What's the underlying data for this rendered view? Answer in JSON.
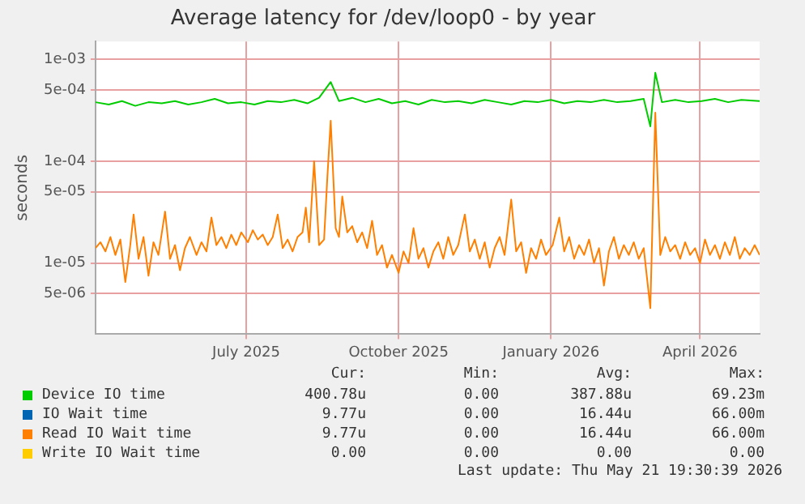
{
  "chart_data": {
    "type": "line",
    "title": "Average latency for /dev/loop0 - by year",
    "ylabel": "seconds",
    "log": "y",
    "grid": true,
    "legend": "bottom",
    "marker": "none",
    "line_style": "solid",
    "xlim": [
      "2025-04-01",
      "2026-05-07"
    ],
    "xticks": [
      {
        "value": "2025-07-01",
        "label": "July 2025"
      },
      {
        "value": "2025-10-01",
        "label": "October 2025"
      },
      {
        "value": "2026-01-01",
        "label": "January 2026"
      },
      {
        "value": "2026-04-01",
        "label": "April 2026"
      }
    ],
    "ylim": [
      2e-06,
      0.0015
    ],
    "yticks": [
      {
        "value": 5e-06,
        "label": "5e-06"
      },
      {
        "value": 1e-05,
        "label": "1e-05"
      },
      {
        "value": 5e-05,
        "label": "5e-05"
      },
      {
        "value": 0.0001,
        "label": "1e-04"
      },
      {
        "value": 0.0005,
        "label": "5e-04"
      },
      {
        "value": 0.001,
        "label": "1e-03"
      }
    ],
    "series": [
      {
        "name": "Device IO time",
        "color": "#00cc00",
        "x": [
          "2025-04-01",
          "2025-04-09",
          "2025-04-17",
          "2025-04-25",
          "2025-05-03",
          "2025-05-11",
          "2025-05-19",
          "2025-05-27",
          "2025-06-04",
          "2025-06-12",
          "2025-06-20",
          "2025-06-28",
          "2025-07-06",
          "2025-07-14",
          "2025-07-22",
          "2025-07-30",
          "2025-08-07",
          "2025-08-14",
          "2025-08-21",
          "2025-08-26",
          "2025-09-03",
          "2025-09-11",
          "2025-09-19",
          "2025-09-27",
          "2025-10-05",
          "2025-10-13",
          "2025-10-21",
          "2025-10-29",
          "2025-11-06",
          "2025-11-14",
          "2025-11-22",
          "2025-11-30",
          "2025-12-08",
          "2025-12-16",
          "2025-12-24",
          "2026-01-01",
          "2026-01-09",
          "2026-01-17",
          "2026-01-25",
          "2026-02-02",
          "2026-02-10",
          "2026-02-18",
          "2026-02-26",
          "2026-03-02",
          "2026-03-05",
          "2026-03-09",
          "2026-03-17",
          "2026-03-25",
          "2026-04-02",
          "2026-04-10",
          "2026-04-18",
          "2026-04-26",
          "2026-05-07"
        ],
        "values": [
          0.00038,
          0.00036,
          0.00039,
          0.00035,
          0.00038,
          0.00037,
          0.00039,
          0.00036,
          0.00038,
          0.00041,
          0.00037,
          0.00038,
          0.00036,
          0.00039,
          0.00038,
          0.0004,
          0.00037,
          0.00042,
          0.0006,
          0.00039,
          0.00042,
          0.00038,
          0.00041,
          0.00037,
          0.00039,
          0.00036,
          0.0004,
          0.00038,
          0.00039,
          0.00037,
          0.0004,
          0.00038,
          0.00036,
          0.00039,
          0.00038,
          0.0004,
          0.00037,
          0.00039,
          0.00038,
          0.0004,
          0.00038,
          0.00039,
          0.00041,
          0.00022,
          0.00074,
          0.00038,
          0.0004,
          0.00038,
          0.00039,
          0.00041,
          0.00038,
          0.0004,
          0.00039
        ]
      },
      {
        "name": "IO Wait time",
        "color": "#0066b3"
      },
      {
        "name": "Read IO Wait time",
        "color": "#ff8000",
        "x": [
          "2025-04-01",
          "2025-04-04",
          "2025-04-07",
          "2025-04-10",
          "2025-04-13",
          "2025-04-16",
          "2025-04-19",
          "2025-04-22",
          "2025-04-24",
          "2025-04-27",
          "2025-04-30",
          "2025-05-03",
          "2025-05-06",
          "2025-05-09",
          "2025-05-13",
          "2025-05-16",
          "2025-05-19",
          "2025-05-22",
          "2025-05-25",
          "2025-05-28",
          "2025-06-01",
          "2025-06-04",
          "2025-06-07",
          "2025-06-10",
          "2025-06-13",
          "2025-06-16",
          "2025-06-19",
          "2025-06-22",
          "2025-06-25",
          "2025-06-28",
          "2025-07-02",
          "2025-07-05",
          "2025-07-08",
          "2025-07-11",
          "2025-07-14",
          "2025-07-17",
          "2025-07-20",
          "2025-07-23",
          "2025-07-26",
          "2025-07-29",
          "2025-08-01",
          "2025-08-04",
          "2025-08-06",
          "2025-08-08",
          "2025-08-11",
          "2025-08-14",
          "2025-08-17",
          "2025-08-19",
          "2025-08-21",
          "2025-08-24",
          "2025-08-26",
          "2025-08-28",
          "2025-08-31",
          "2025-09-03",
          "2025-09-06",
          "2025-09-09",
          "2025-09-12",
          "2025-09-15",
          "2025-09-18",
          "2025-09-21",
          "2025-09-24",
          "2025-09-27",
          "2025-10-01",
          "2025-10-04",
          "2025-10-07",
          "2025-10-10",
          "2025-10-13",
          "2025-10-16",
          "2025-10-19",
          "2025-10-22",
          "2025-10-25",
          "2025-10-28",
          "2025-10-31",
          "2025-11-03",
          "2025-11-06",
          "2025-11-10",
          "2025-11-13",
          "2025-11-16",
          "2025-11-19",
          "2025-11-22",
          "2025-11-25",
          "2025-11-28",
          "2025-12-01",
          "2025-12-04",
          "2025-12-08",
          "2025-12-11",
          "2025-12-14",
          "2025-12-17",
          "2025-12-20",
          "2025-12-23",
          "2025-12-26",
          "2025-12-29",
          "2026-01-02",
          "2026-01-06",
          "2026-01-09",
          "2026-01-12",
          "2026-01-15",
          "2026-01-18",
          "2026-01-21",
          "2026-01-24",
          "2026-01-27",
          "2026-01-30",
          "2026-02-02",
          "2026-02-05",
          "2026-02-08",
          "2026-02-11",
          "2026-02-14",
          "2026-02-17",
          "2026-02-20",
          "2026-02-23",
          "2026-02-26",
          "2026-03-02",
          "2026-03-05",
          "2026-03-08",
          "2026-03-11",
          "2026-03-14",
          "2026-03-17",
          "2026-03-20",
          "2026-03-23",
          "2026-03-26",
          "2026-03-29",
          "2026-04-01",
          "2026-04-04",
          "2026-04-07",
          "2026-04-10",
          "2026-04-13",
          "2026-04-16",
          "2026-04-19",
          "2026-04-22",
          "2026-04-25",
          "2026-04-28",
          "2026-05-01",
          "2026-05-04",
          "2026-05-07"
        ],
        "values": [
          1.4e-05,
          1.6e-05,
          1.3e-05,
          1.8e-05,
          1.2e-05,
          1.7e-05,
          6.5e-06,
          1.5e-05,
          3e-05,
          1.1e-05,
          1.8e-05,
          7.5e-06,
          1.6e-05,
          1.2e-05,
          3.2e-05,
          1.1e-05,
          1.5e-05,
          8.5e-06,
          1.4e-05,
          1.8e-05,
          1.2e-05,
          1.6e-05,
          1.3e-05,
          2.8e-05,
          1.5e-05,
          1.8e-05,
          1.4e-05,
          1.9e-05,
          1.5e-05,
          2e-05,
          1.6e-05,
          2.1e-05,
          1.7e-05,
          1.9e-05,
          1.5e-05,
          1.8e-05,
          3e-05,
          1.4e-05,
          1.7e-05,
          1.3e-05,
          1.8e-05,
          2e-05,
          3.5e-05,
          1.6e-05,
          0.0001,
          1.5e-05,
          1.7e-05,
          7e-05,
          0.00025,
          2.2e-05,
          1.8e-05,
          4.5e-05,
          2e-05,
          2.3e-05,
          1.6e-05,
          2e-05,
          1.4e-05,
          2.6e-05,
          1.2e-05,
          1.5e-05,
          9e-06,
          1.2e-05,
          8e-06,
          1.3e-05,
          1e-05,
          2.2e-05,
          1.1e-05,
          1.4e-05,
          9e-06,
          1.3e-05,
          1.6e-05,
          1.1e-05,
          1.8e-05,
          1.2e-05,
          1.5e-05,
          3e-05,
          1.3e-05,
          1.7e-05,
          1.1e-05,
          1.6e-05,
          9e-06,
          1.4e-05,
          1.8e-05,
          1.2e-05,
          4.2e-05,
          1.3e-05,
          1.6e-05,
          8e-06,
          1.4e-05,
          1.1e-05,
          1.7e-05,
          1.2e-05,
          1.5e-05,
          2.8e-05,
          1.3e-05,
          1.8e-05,
          1.1e-05,
          1.5e-05,
          1.2e-05,
          1.7e-05,
          1e-05,
          1.4e-05,
          6e-06,
          1.3e-05,
          1.8e-05,
          1.1e-05,
          1.5e-05,
          1.2e-05,
          1.6e-05,
          1.1e-05,
          1.4e-05,
          3.6e-06,
          0.0003,
          1.2e-05,
          1.8e-05,
          1.3e-05,
          1.5e-05,
          1.1e-05,
          1.6e-05,
          1.2e-05,
          1.4e-05,
          1e-05,
          1.7e-05,
          1.2e-05,
          1.5e-05,
          1.1e-05,
          1.6e-05,
          1.2e-05,
          1.8e-05,
          1.1e-05,
          1.4e-05,
          1.2e-05,
          1.5e-05,
          1.2e-05
        ]
      },
      {
        "name": "Write IO Wait time",
        "color": "#ffcc00"
      }
    ],
    "annotations": [
      "Cur:",
      "Min:",
      "Avg:",
      "Max:",
      "400.78u",
      "0.00",
      "387.88u",
      "69.23m",
      "9.77u",
      "0.00",
      "16.44u",
      "66.00m",
      "9.77u",
      "0.00",
      "16.44u",
      "66.00m",
      "0.00",
      "0.00",
      "0.00",
      "0.00",
      "Last update: Thu May 21 19:30:39 2026"
    ]
  }
}
